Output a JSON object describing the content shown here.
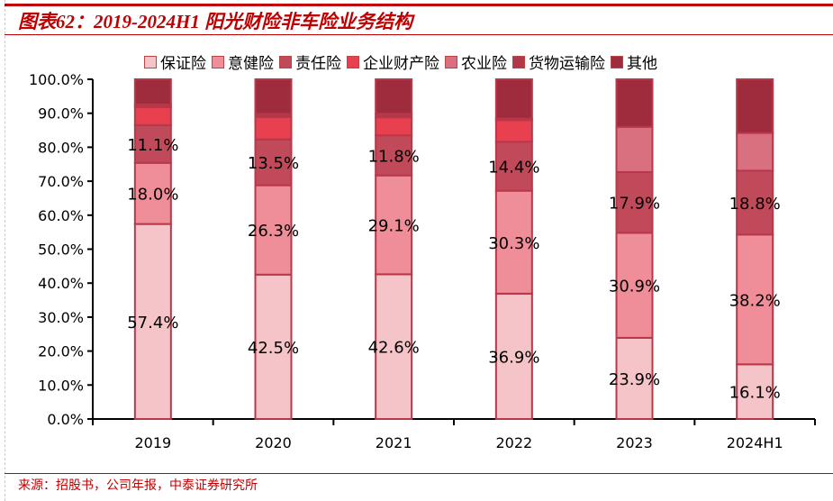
{
  "chart_data": {
    "type": "bar",
    "stacked": true,
    "title": "图表62：2019-2024H1 阳光财险非车险业务结构",
    "source": "来源：招股书，公司年报，中泰证券研究所",
    "categories": [
      "2019",
      "2020",
      "2021",
      "2022",
      "2023",
      "2024H1"
    ],
    "ylim": [
      0,
      100
    ],
    "yticks": [
      "0.0%",
      "10.0%",
      "20.0%",
      "30.0%",
      "40.0%",
      "50.0%",
      "60.0%",
      "70.0%",
      "80.0%",
      "90.0%",
      "100.0%"
    ],
    "legend_position": "top",
    "series": [
      {
        "name": "保证险",
        "color": "#f4c4c8",
        "values": [
          57.4,
          42.5,
          42.6,
          36.9,
          23.9,
          16.1
        ],
        "labels": [
          "57.4%",
          "42.5%",
          "42.6%",
          "36.9%",
          "23.9%",
          "16.1%"
        ]
      },
      {
        "name": "意健险",
        "color": "#ef8e98",
        "values": [
          18.0,
          26.3,
          29.1,
          30.3,
          30.9,
          38.2
        ],
        "labels": [
          "18.0%",
          "26.3%",
          "29.1%",
          "30.3%",
          "30.9%",
          "38.2%"
        ]
      },
      {
        "name": "责任险",
        "color": "#c04a5a",
        "values": [
          11.1,
          13.5,
          11.8,
          14.4,
          17.9,
          18.8
        ],
        "labels": [
          "11.1%",
          "13.5%",
          "11.8%",
          "14.4%",
          "17.9%",
          "18.8%"
        ]
      },
      {
        "name": "企业财产险",
        "color": "#e8404e",
        "values": [
          5.3,
          6.6,
          5.3,
          6.4,
          0,
          0
        ]
      },
      {
        "name": "农业险",
        "color": "#d87080",
        "values": [
          0,
          0,
          0,
          0,
          13.3,
          11.1
        ]
      },
      {
        "name": "货物运输险",
        "color": "#b03848",
        "values": [
          0.8,
          0.9,
          1.0,
          0.4,
          0,
          0
        ]
      },
      {
        "name": "其他",
        "color": "#9e2c3c",
        "values": [
          7.4,
          10.2,
          10.2,
          11.6,
          14.0,
          15.8
        ]
      }
    ]
  }
}
